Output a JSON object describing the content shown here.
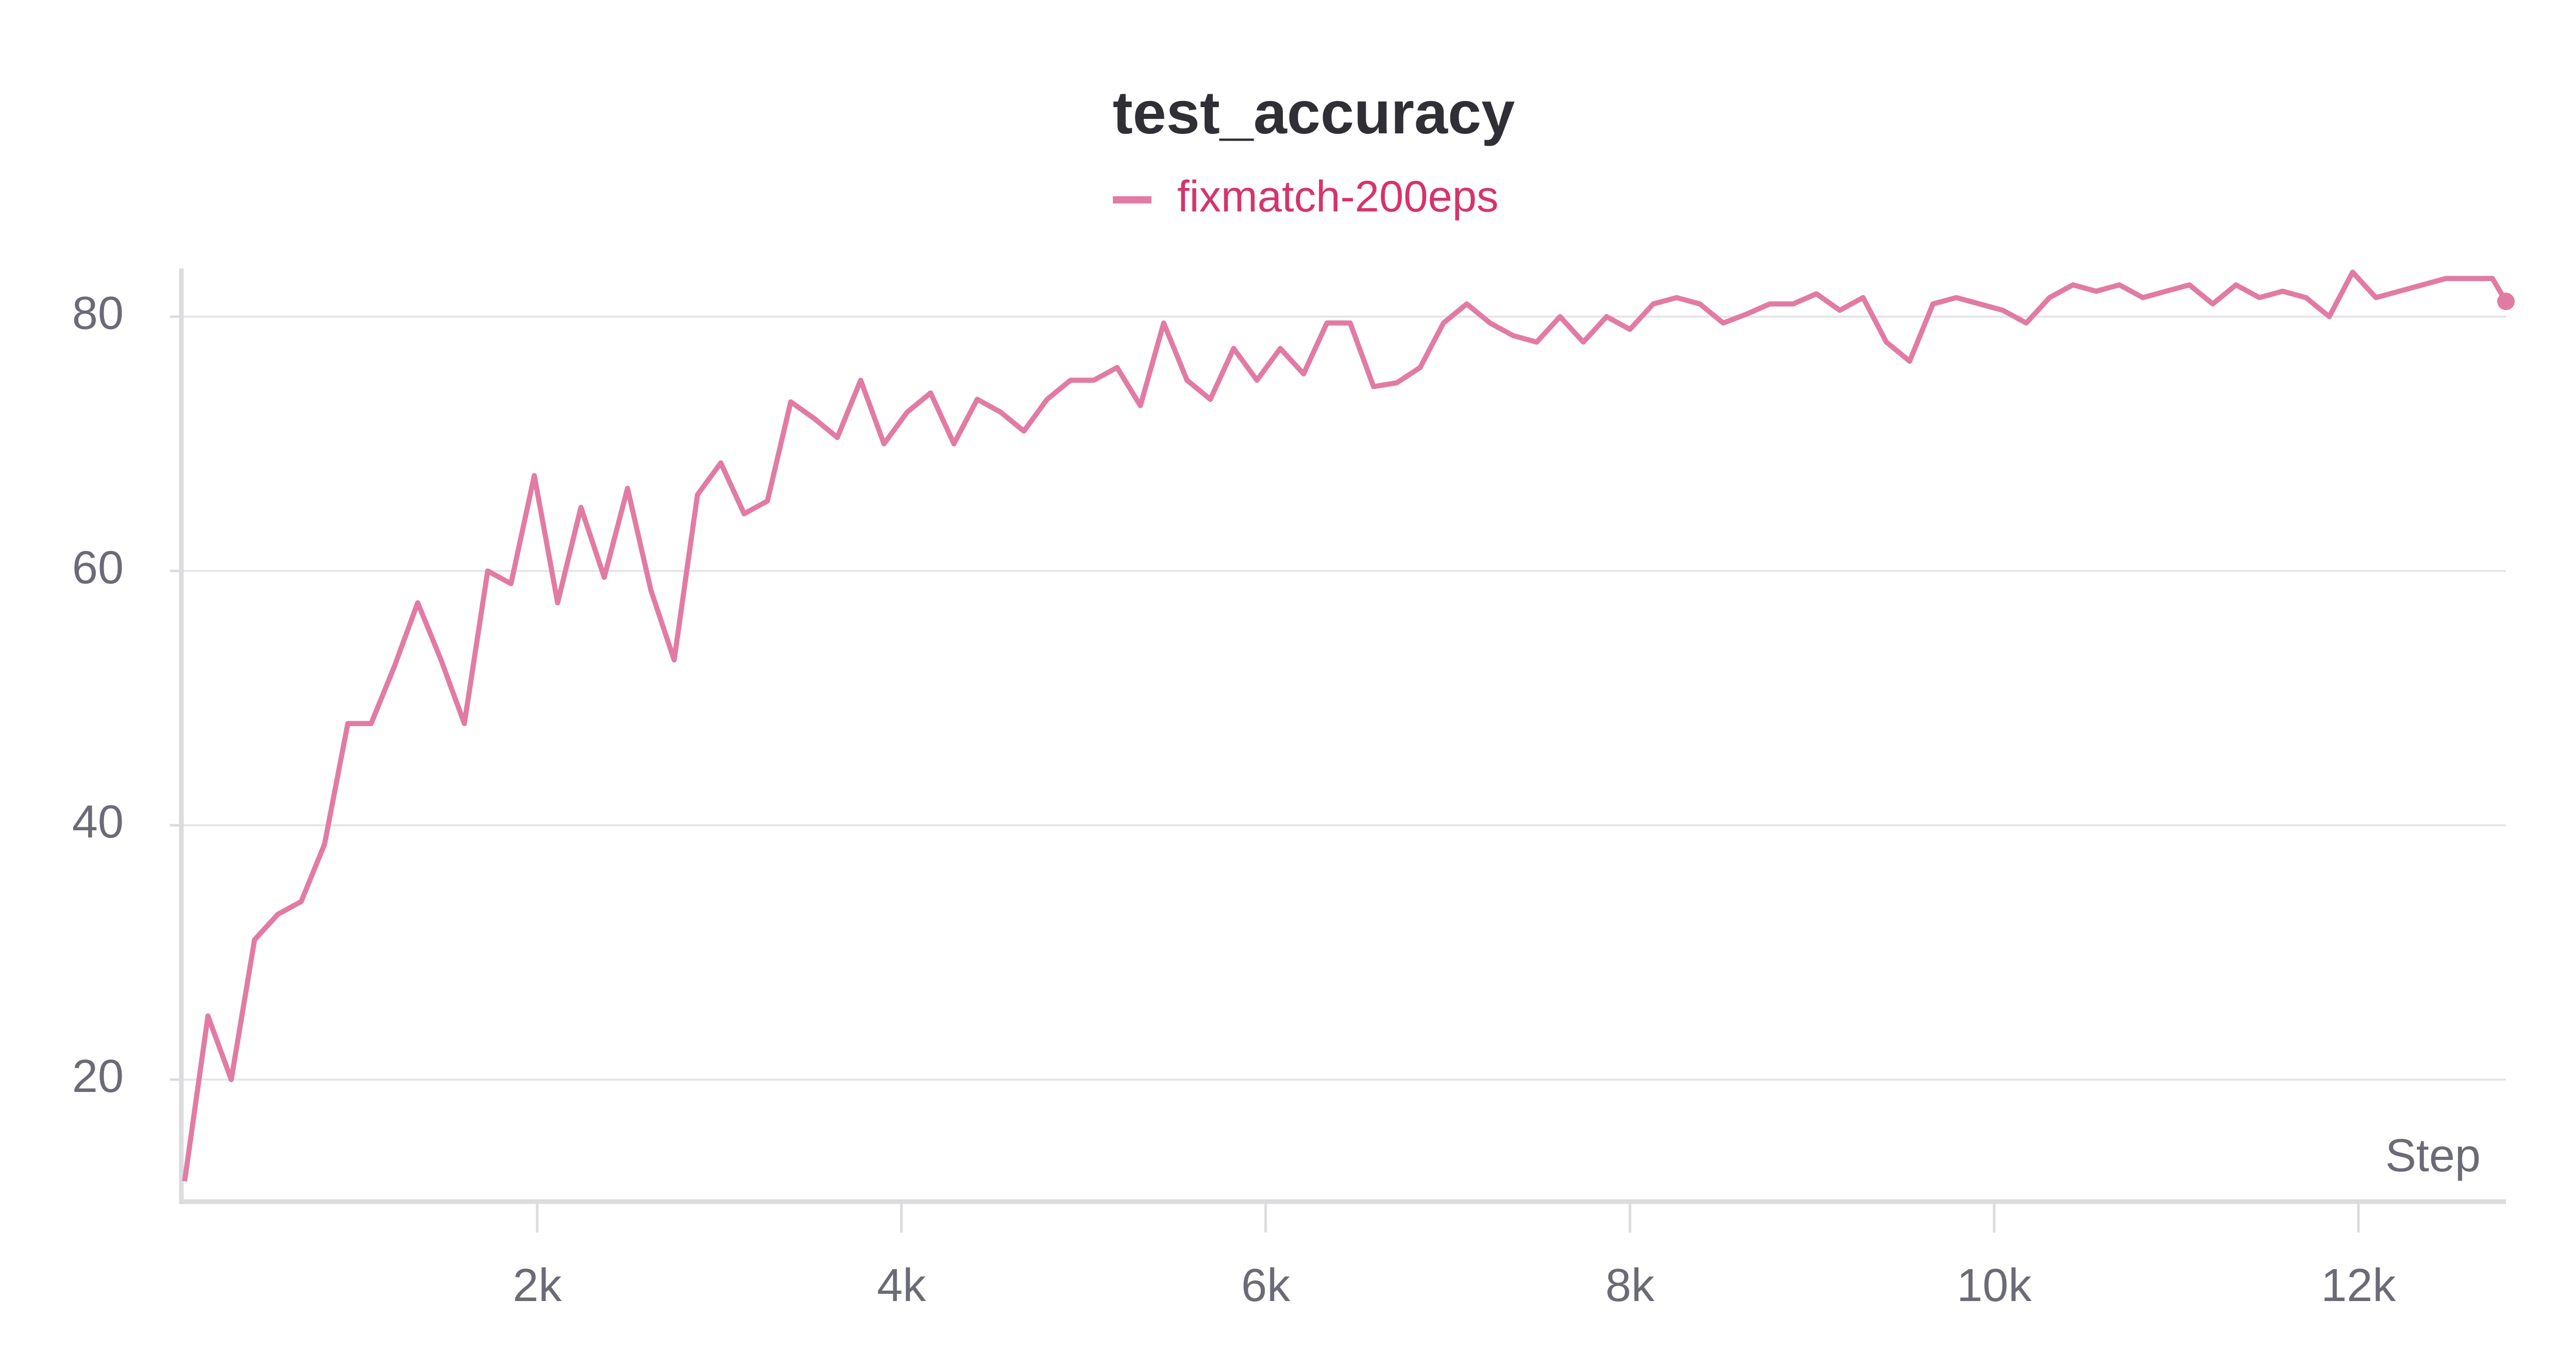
{
  "chart_data": {
    "type": "line",
    "title": "test_accuracy",
    "x_label": "Step",
    "x": [
      64,
      192,
      320,
      448,
      576,
      704,
      832,
      960,
      1088,
      1216,
      1344,
      1472,
      1600,
      1728,
      1856,
      1984,
      2112,
      2240,
      2368,
      2496,
      2624,
      2752,
      2880,
      3008,
      3136,
      3264,
      3392,
      3520,
      3648,
      3776,
      3904,
      4032,
      4160,
      4288,
      4416,
      4544,
      4672,
      4800,
      4928,
      5056,
      5184,
      5312,
      5440,
      5568,
      5696,
      5824,
      5952,
      6080,
      6208,
      6336,
      6464,
      6592,
      6720,
      6848,
      6976,
      7104,
      7232,
      7360,
      7488,
      7616,
      7744,
      7872,
      8000,
      8128,
      8256,
      8384,
      8512,
      8640,
      8768,
      8896,
      9024,
      9152,
      9280,
      9408,
      9536,
      9664,
      9792,
      9920,
      10048,
      10176,
      10304,
      10432,
      10560,
      10688,
      10816,
      10944,
      11072,
      11200,
      11328,
      11456,
      11584,
      11712,
      11840,
      11968,
      12096,
      12224,
      12352,
      12480,
      12608,
      12736,
      12810
    ],
    "series": [
      {
        "name": "fixmatch-200eps",
        "color": "#e27ba4",
        "values": [
          12,
          25,
          20,
          31,
          33,
          34,
          38.5,
          48,
          48,
          52.5,
          57.5,
          53,
          48,
          60,
          59,
          67.5,
          57.5,
          65,
          59.5,
          66.5,
          58.5,
          53,
          66,
          68.5,
          64.5,
          65.5,
          73.3,
          72,
          70.5,
          75,
          70,
          72.5,
          74,
          70,
          73.5,
          72.5,
          71,
          73.5,
          75,
          75,
          76,
          73,
          79.5,
          75,
          73.5,
          77.5,
          75,
          77.5,
          75.5,
          79.5,
          79.5,
          74.5,
          74.8,
          76,
          79.5,
          81,
          79.5,
          78.5,
          78,
          80,
          78,
          80,
          79,
          81,
          81.5,
          81,
          79.5,
          80.2,
          81,
          81,
          81.8,
          80.5,
          81.5,
          78,
          76.5,
          81,
          81.5,
          81,
          80.5,
          79.5,
          81.5,
          82.5,
          82,
          82.5,
          81.5,
          82,
          82.5,
          81,
          82.5,
          81.5,
          82,
          81.5,
          80,
          83.5,
          81.5,
          82,
          82.5,
          83,
          83,
          83,
          81.2
        ]
      }
    ],
    "xlim": [
      46,
      12810
    ],
    "ylim": [
      10.4,
      83.8
    ],
    "xticks": [
      {
        "value": 2000,
        "label": "2k"
      },
      {
        "value": 4000,
        "label": "4k"
      },
      {
        "value": 6000,
        "label": "6k"
      },
      {
        "value": 8000,
        "label": "8k"
      },
      {
        "value": 10000,
        "label": "10k"
      },
      {
        "value": 12000,
        "label": "12k"
      }
    ],
    "yticks": [
      20,
      40,
      60,
      80
    ],
    "grid": true
  }
}
